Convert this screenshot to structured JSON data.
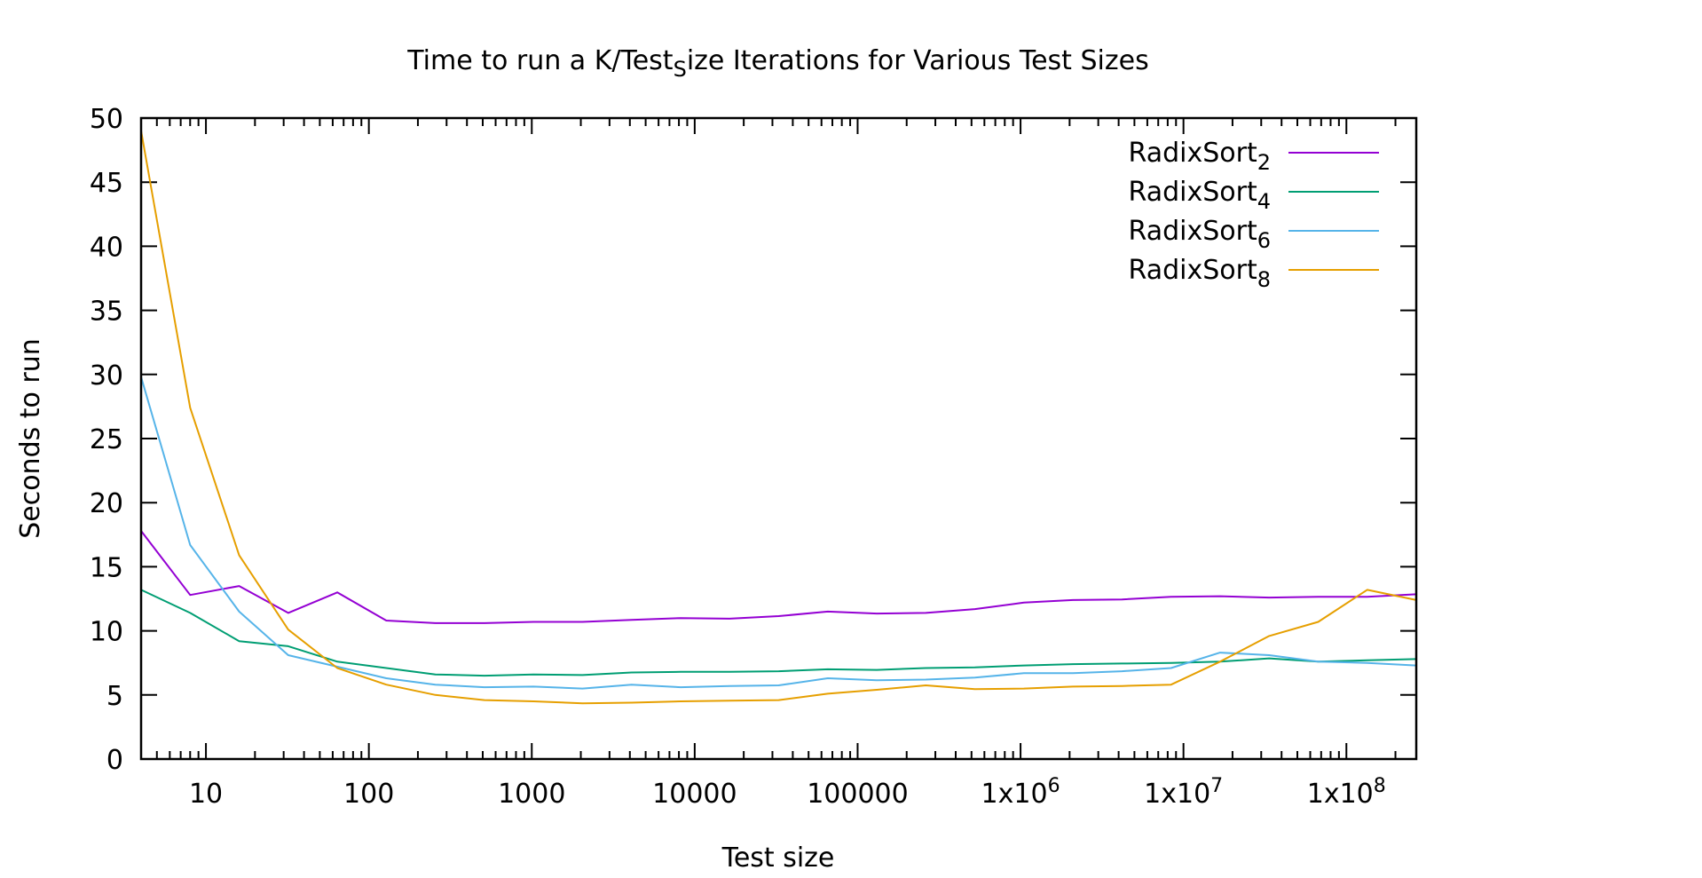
{
  "chart_data": {
    "type": "line",
    "title_parts": [
      "Time to run a K/Test",
      "S",
      "ize Iterations for Various Test Sizes"
    ],
    "xlabel": "Test size",
    "ylabel": "Seconds to run",
    "xscale": "log",
    "xlim": [
      4,
      268435456
    ],
    "ylim": [
      0,
      50
    ],
    "grid": false,
    "legend_position": "top-right",
    "x_ticks": [
      {
        "value": 10,
        "label": "10",
        "sup": ""
      },
      {
        "value": 100,
        "label": "100",
        "sup": ""
      },
      {
        "value": 1000,
        "label": "1000",
        "sup": ""
      },
      {
        "value": 10000,
        "label": "10000",
        "sup": ""
      },
      {
        "value": 100000,
        "label": "100000",
        "sup": ""
      },
      {
        "value": 1000000,
        "label": "1x10",
        "sup": "6"
      },
      {
        "value": 10000000,
        "label": "1x10",
        "sup": "7"
      },
      {
        "value": 100000000,
        "label": "1x10",
        "sup": "8"
      }
    ],
    "y_ticks": [
      0,
      5,
      10,
      15,
      20,
      25,
      30,
      35,
      40,
      45,
      50
    ],
    "x": [
      4,
      8,
      16,
      32,
      64,
      128,
      256,
      512,
      1024,
      2048,
      4096,
      8192,
      16384,
      32768,
      65536,
      131072,
      262144,
      524288,
      1048576,
      2097152,
      4194304,
      8388608,
      16777216,
      33554432,
      67108864,
      134217728,
      268435456
    ],
    "series": [
      {
        "name": "RadixSort",
        "subscript": "2",
        "color": "#9400d3",
        "values": [
          17.8,
          12.8,
          13.5,
          11.4,
          13.0,
          10.8,
          10.6,
          10.6,
          10.7,
          10.7,
          10.85,
          11.0,
          10.95,
          11.15,
          11.5,
          11.35,
          11.4,
          11.7,
          12.2,
          12.4,
          12.45,
          12.65,
          12.7,
          12.6,
          12.65,
          12.65,
          12.85
        ]
      },
      {
        "name": "RadixSort",
        "subscript": "4",
        "color": "#009e73",
        "values": [
          13.2,
          11.4,
          9.2,
          8.8,
          7.6,
          7.1,
          6.6,
          6.5,
          6.6,
          6.55,
          6.75,
          6.8,
          6.8,
          6.85,
          7.0,
          6.95,
          7.1,
          7.15,
          7.3,
          7.4,
          7.45,
          7.5,
          7.6,
          7.85,
          7.6,
          7.7,
          7.8
        ]
      },
      {
        "name": "RadixSort",
        "subscript": "6",
        "color": "#56b4e9",
        "values": [
          29.8,
          16.7,
          11.5,
          8.1,
          7.2,
          6.3,
          5.8,
          5.6,
          5.65,
          5.5,
          5.8,
          5.6,
          5.7,
          5.75,
          6.3,
          6.15,
          6.2,
          6.35,
          6.7,
          6.7,
          6.85,
          7.1,
          8.3,
          8.1,
          7.6,
          7.5,
          7.3
        ]
      },
      {
        "name": "RadixSort",
        "subscript": "8",
        "color": "#e69f00",
        "values": [
          49.0,
          27.4,
          15.9,
          10.1,
          7.1,
          5.8,
          5.0,
          4.6,
          4.5,
          4.35,
          4.4,
          4.5,
          4.55,
          4.6,
          5.1,
          5.4,
          5.75,
          5.45,
          5.5,
          5.65,
          5.7,
          5.8,
          7.6,
          9.6,
          10.7,
          13.2,
          12.4
        ]
      }
    ]
  }
}
